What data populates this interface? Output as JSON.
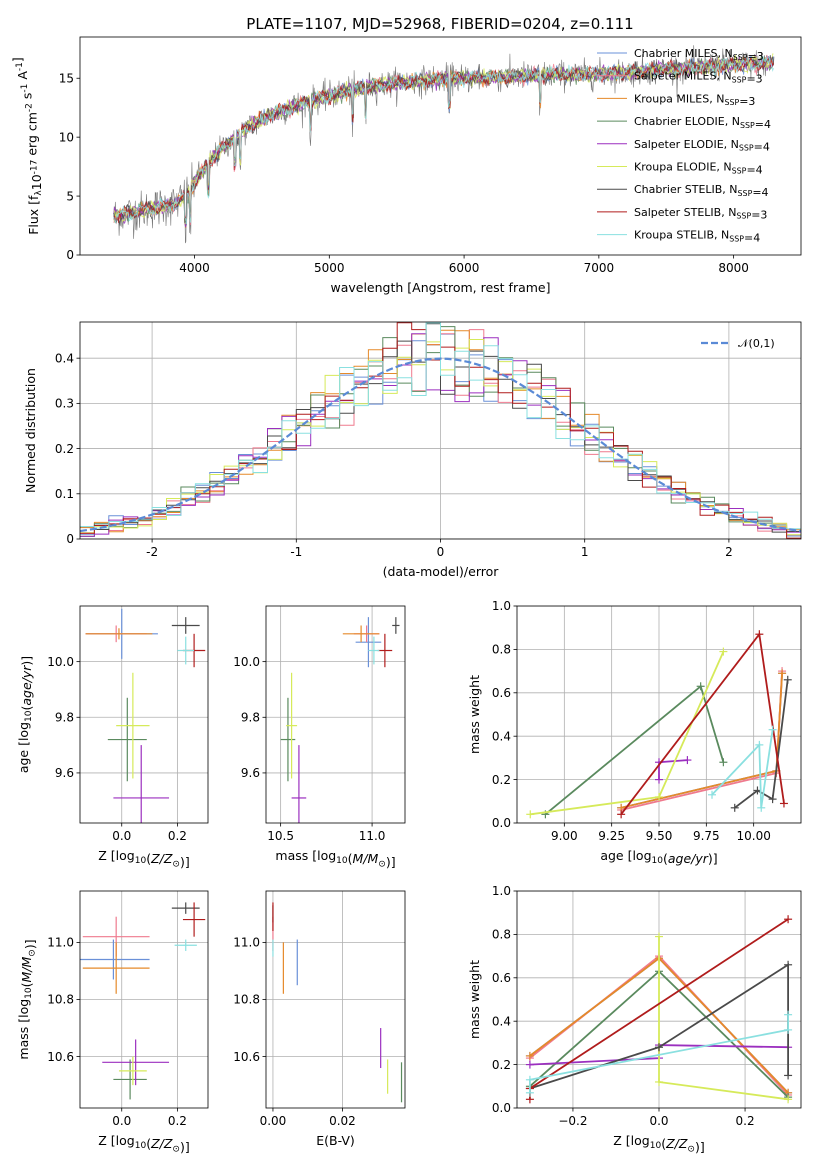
{
  "title": "PLATE=1107, MJD=52968, FIBERID=0204, z=0.111",
  "models": [
    {
      "label": "Chabrier MILES, N$_{SSP}$=3",
      "imf": "Chabrier",
      "lib": "MILES",
      "nssp": "3",
      "color": "#6a90d8"
    },
    {
      "label": "Salpeter MILES, N$_{SSP}$=3",
      "imf": "Salpeter",
      "lib": "MILES",
      "nssp": "3",
      "color": "#ef7a8e"
    },
    {
      "label": "Kroupa MILES, N$_{SSP}$=3",
      "imf": "Kroupa",
      "lib": "MILES",
      "nssp": "3",
      "color": "#e58a2a"
    },
    {
      "label": "Chabrier ELODIE, N$_{SSP}$=4",
      "imf": "Chabrier",
      "lib": "ELODIE",
      "nssp": "4",
      "color": "#5a8a5e"
    },
    {
      "label": "Salpeter ELODIE, N$_{SSP}$=4",
      "imf": "Salpeter",
      "lib": "ELODIE",
      "nssp": "4",
      "color": "#9b2fbf"
    },
    {
      "label": "Kroupa ELODIE, N$_{SSP}$=4",
      "imf": "Kroupa",
      "lib": "ELODIE",
      "nssp": "4",
      "color": "#d6ea5a"
    },
    {
      "label": "Chabrier STELIB, N$_{SSP}$=4",
      "imf": "Chabrier",
      "lib": "STELIB",
      "nssp": "4",
      "color": "#4a4a4a"
    },
    {
      "label": "Salpeter STELIB, N$_{SSP}$=3",
      "imf": "Salpeter",
      "lib": "STELIB",
      "nssp": "3",
      "color": "#b01c1c"
    },
    {
      "label": "Kroupa STELIB, N$_{SSP}$=4",
      "imf": "Kroupa",
      "lib": "STELIB",
      "nssp": "4",
      "color": "#8ae0e0"
    }
  ],
  "chart_data": [
    {
      "type": "line",
      "id": "spectrum",
      "xlabel": "wavelength [Angstrom, rest frame]",
      "ylabel": "Flux [f$_\\lambda$10$^{-17}$ erg cm$^{-2}$ s$^{-1}$ A$^{-1}$]",
      "xlim": [
        3150,
        8500
      ],
      "ylim": [
        0,
        18.5
      ],
      "xticks": [
        4000,
        5000,
        6000,
        7000,
        8000
      ],
      "yticks": [
        0,
        5,
        10,
        15
      ],
      "grid": false,
      "legend": "right",
      "continuum": {
        "x": [
          3400,
          3550,
          3700,
          3850,
          3950,
          4050,
          4200,
          4350,
          4500,
          4700,
          4900,
          5100,
          5300,
          5500,
          5700,
          5900,
          6100,
          6300,
          6500,
          6700,
          6900,
          7100,
          7300,
          7500,
          7700,
          7900,
          8100,
          8300
        ],
        "y": [
          3.3,
          3.6,
          4.0,
          4.3,
          5.2,
          7.0,
          9.0,
          10.5,
          11.5,
          12.5,
          13.2,
          13.8,
          14.3,
          14.6,
          14.8,
          15.0,
          15.0,
          15.1,
          15.2,
          15.3,
          15.3,
          15.4,
          15.6,
          15.8,
          15.9,
          16.1,
          16.2,
          16.3
        ]
      },
      "xrange_model": [
        3400,
        8300
      ]
    },
    {
      "type": "step",
      "id": "residual-hist",
      "xlabel": "(data-model)/error",
      "ylabel": "Normed distribution",
      "xlim": [
        -2.5,
        2.5
      ],
      "ylim": [
        0,
        0.48
      ],
      "xticks": [
        -2,
        -1,
        0,
        1,
        2
      ],
      "yticks": [
        0.0,
        0.1,
        0.2,
        0.3,
        0.4
      ],
      "grid": true,
      "legend": "top-right",
      "bin_width": 0.1,
      "reference": {
        "label": "$\\mathcal{N}(0,1)$",
        "mean": 0,
        "sigma": 1,
        "color": "#5a8ad6"
      }
    },
    {
      "type": "errorbar",
      "id": "age-vs-z",
      "xlabel": "Z [log$_{10}$($Z/Z_\\odot$)]",
      "ylabel": "age  [log$_{10}$($age/yr$)]",
      "xlim": [
        -0.15,
        0.31
      ],
      "ylim": [
        9.42,
        10.2
      ],
      "xticks": [
        0.0,
        0.2
      ],
      "xticklabels": [
        "0.0",
        "0.2"
      ],
      "yticks": [
        9.6,
        9.8,
        10.0
      ],
      "yticklabels": [
        "9.6",
        "9.8",
        "10.0"
      ],
      "grid": true,
      "points": [
        {
          "model": 0,
          "x": 0.0,
          "y": 10.1,
          "xerr": 0.13,
          "yerr": 0.09
        },
        {
          "model": 1,
          "x": -0.02,
          "y": 10.1,
          "xerr": 0.11,
          "yerr": 0.03
        },
        {
          "model": 2,
          "x": -0.01,
          "y": 10.1,
          "xerr": 0.12,
          "yerr": 0.02
        },
        {
          "model": 3,
          "x": 0.02,
          "y": 9.72,
          "xerr": 0.07,
          "yerr": 0.15
        },
        {
          "model": 4,
          "x": 0.07,
          "y": 9.51,
          "xerr": 0.1,
          "yerr": 0.19
        },
        {
          "model": 5,
          "x": 0.04,
          "y": 9.77,
          "xerr": 0.06,
          "yerr": 0.19
        },
        {
          "model": 6,
          "x": 0.23,
          "y": 10.13,
          "xerr": 0.05,
          "yerr": 0.03
        },
        {
          "model": 7,
          "x": 0.26,
          "y": 10.04,
          "xerr": 0.04,
          "yerr": 0.06
        },
        {
          "model": 8,
          "x": 0.23,
          "y": 10.04,
          "xerr": 0.03,
          "yerr": 0.05
        }
      ]
    },
    {
      "type": "errorbar",
      "id": "age-vs-mass",
      "xlabel": "mass [log$_{10}$($M/M_\\odot$)]",
      "ylabel": "",
      "xlim": [
        10.42,
        11.18
      ],
      "ylim": [
        9.42,
        10.2
      ],
      "xticks": [
        10.5,
        11.0
      ],
      "xticklabels": [
        "10.5",
        "11.0"
      ],
      "yticks": [
        9.6,
        9.8,
        10.0
      ],
      "yticklabels": [
        "9.6",
        "9.8",
        "10.0"
      ],
      "grid": true,
      "points": [
        {
          "model": 0,
          "x": 10.98,
          "y": 10.07,
          "xerr": 0.07,
          "yerr": 0.09
        },
        {
          "model": 1,
          "x": 10.97,
          "y": 10.1,
          "xerr": 0.07,
          "yerr": 0.03
        },
        {
          "model": 2,
          "x": 10.94,
          "y": 10.1,
          "xerr": 0.1,
          "yerr": 0.03
        },
        {
          "model": 3,
          "x": 10.54,
          "y": 9.72,
          "xerr": 0.04,
          "yerr": 0.15
        },
        {
          "model": 4,
          "x": 10.6,
          "y": 9.51,
          "xerr": 0.04,
          "yerr": 0.19
        },
        {
          "model": 5,
          "x": 10.56,
          "y": 9.77,
          "xerr": 0.03,
          "yerr": 0.19
        },
        {
          "model": 6,
          "x": 11.13,
          "y": 10.13,
          "xerr": 0.02,
          "yerr": 0.03
        },
        {
          "model": 7,
          "x": 11.07,
          "y": 10.04,
          "xerr": 0.04,
          "yerr": 0.06
        },
        {
          "model": 8,
          "x": 11.01,
          "y": 10.04,
          "xerr": 0.03,
          "yerr": 0.05
        }
      ]
    },
    {
      "type": "line",
      "id": "weight-vs-age",
      "xlabel": "age  [log$_{10}$($age/yr$)]",
      "ylabel": "mass weight",
      "xlim": [
        8.75,
        10.25
      ],
      "ylim": [
        0.0,
        1.0
      ],
      "xticks": [
        9.0,
        9.25,
        9.5,
        9.75,
        10.0
      ],
      "xticklabels": [
        "9.00",
        "9.25",
        "9.50",
        "9.75",
        "10.00"
      ],
      "yticks": [
        0.0,
        0.2,
        0.4,
        0.6,
        0.8,
        1.0
      ],
      "yticklabels": [
        "0.0",
        "0.2",
        "0.4",
        "0.6",
        "0.8",
        "1.0"
      ],
      "grid": true,
      "series": [
        {
          "model": 0,
          "points": [
            [
              9.3,
              0.07
            ],
            [
              10.12,
              0.24
            ],
            [
              10.15,
              0.69
            ]
          ]
        },
        {
          "model": 1,
          "points": [
            [
              9.3,
              0.06
            ],
            [
              10.12,
              0.23
            ],
            [
              10.15,
              0.7
            ]
          ]
        },
        {
          "model": 2,
          "points": [
            [
              9.3,
              0.07
            ],
            [
              10.12,
              0.24
            ],
            [
              10.15,
              0.69
            ]
          ]
        },
        {
          "model": 3,
          "points": [
            [
              8.9,
              0.04
            ],
            [
              9.72,
              0.63
            ],
            [
              9.84,
              0.28
            ]
          ]
        },
        {
          "model": 4,
          "points": [
            [
              9.5,
              0.2
            ],
            [
              9.5,
              0.28
            ],
            [
              9.65,
              0.29
            ]
          ]
        },
        {
          "model": 5,
          "points": [
            [
              8.82,
              0.04
            ],
            [
              9.5,
              0.12
            ],
            [
              9.84,
              0.79
            ]
          ]
        },
        {
          "model": 6,
          "points": [
            [
              9.9,
              0.07
            ],
            [
              10.02,
              0.15
            ],
            [
              10.1,
              0.11
            ],
            [
              10.18,
              0.66
            ]
          ]
        },
        {
          "model": 7,
          "points": [
            [
              9.3,
              0.04
            ],
            [
              10.03,
              0.87
            ],
            [
              10.16,
              0.09
            ]
          ]
        },
        {
          "model": 8,
          "points": [
            [
              9.78,
              0.13
            ],
            [
              10.03,
              0.36
            ],
            [
              10.04,
              0.07
            ],
            [
              10.1,
              0.43
            ]
          ]
        }
      ]
    },
    {
      "type": "errorbar",
      "id": "mass-vs-z",
      "xlabel": "Z [log$_{10}$($Z/Z_\\odot$)]",
      "ylabel": "mass [log$_{10}$($M/M_\\odot$)]",
      "xlim": [
        -0.15,
        0.31
      ],
      "ylim": [
        10.42,
        11.18
      ],
      "xticks": [
        0.0,
        0.2
      ],
      "xticklabels": [
        "0.0",
        "0.2"
      ],
      "yticks": [
        10.6,
        10.8,
        11.0
      ],
      "yticklabels": [
        "10.6",
        "10.8",
        "11.0"
      ],
      "grid": true,
      "points": [
        {
          "model": 0,
          "x": -0.03,
          "y": 10.94,
          "xerr": 0.13,
          "yerr": 0.07
        },
        {
          "model": 1,
          "x": -0.02,
          "y": 11.02,
          "xerr": 0.12,
          "yerr": 0.07
        },
        {
          "model": 2,
          "x": -0.02,
          "y": 10.91,
          "xerr": 0.12,
          "yerr": 0.09
        },
        {
          "model": 3,
          "x": 0.03,
          "y": 10.52,
          "xerr": 0.06,
          "yerr": 0.07
        },
        {
          "model": 4,
          "x": 0.05,
          "y": 10.58,
          "xerr": 0.12,
          "yerr": 0.08
        },
        {
          "model": 5,
          "x": 0.04,
          "y": 10.55,
          "xerr": 0.05,
          "yerr": 0.05
        },
        {
          "model": 6,
          "x": 0.23,
          "y": 11.12,
          "xerr": 0.05,
          "yerr": 0.02
        },
        {
          "model": 7,
          "x": 0.26,
          "y": 11.08,
          "xerr": 0.04,
          "yerr": 0.06
        },
        {
          "model": 8,
          "x": 0.23,
          "y": 10.99,
          "xerr": 0.04,
          "yerr": 0.02
        }
      ]
    },
    {
      "type": "errorbar",
      "id": "mass-vs-ebv",
      "xlabel": "E(B-V)",
      "ylabel": "",
      "xlim": [
        -0.002,
        0.038
      ],
      "ylim": [
        10.42,
        11.18
      ],
      "xticks": [
        0.0,
        0.02
      ],
      "xticklabels": [
        "0.00",
        "0.02"
      ],
      "yticks": [
        10.6,
        10.8,
        11.0
      ],
      "yticklabels": [
        "10.6",
        "10.8",
        "11.0"
      ],
      "grid": true,
      "points": [
        {
          "model": 0,
          "x": 0.007,
          "y": 10.93,
          "xerr": 0,
          "yerr": 0.08
        },
        {
          "model": 1,
          "x": 0.0,
          "y": 11.03,
          "xerr": 0,
          "yerr": 0.06
        },
        {
          "model": 2,
          "x": 0.003,
          "y": 10.91,
          "xerr": 0,
          "yerr": 0.09
        },
        {
          "model": 3,
          "x": 0.037,
          "y": 10.51,
          "xerr": 0,
          "yerr": 0.07
        },
        {
          "model": 4,
          "x": 0.031,
          "y": 10.63,
          "xerr": 0,
          "yerr": 0.07
        },
        {
          "model": 5,
          "x": 0.033,
          "y": 10.53,
          "xerr": 0,
          "yerr": 0.06
        },
        {
          "model": 6,
          "x": 0.0,
          "y": 11.1,
          "xerr": 0,
          "yerr": 0.03
        },
        {
          "model": 7,
          "x": 0.0,
          "y": 11.09,
          "xerr": 0,
          "yerr": 0.05
        },
        {
          "model": 8,
          "x": 0.0,
          "y": 10.98,
          "xerr": 0,
          "yerr": 0.03
        }
      ]
    },
    {
      "type": "line",
      "id": "weight-vs-z",
      "xlabel": "Z [log$_{10}$($Z/Z_\\odot$)]",
      "ylabel": "mass weight",
      "xlim": [
        -0.33,
        0.33
      ],
      "ylim": [
        0.0,
        1.0
      ],
      "xticks": [
        -0.2,
        0.0,
        0.2
      ],
      "xticklabels": [
        "−0.2",
        "0.0",
        "0.2"
      ],
      "yticks": [
        0.0,
        0.2,
        0.4,
        0.6,
        0.8,
        1.0
      ],
      "yticklabels": [
        "0.0",
        "0.2",
        "0.4",
        "0.6",
        "0.8",
        "1.0"
      ],
      "grid": true,
      "series": [
        {
          "model": 0,
          "points": [
            [
              -0.3,
              0.24
            ],
            [
              0.0,
              0.69
            ],
            [
              0.3,
              0.07
            ]
          ]
        },
        {
          "model": 1,
          "points": [
            [
              -0.3,
              0.23
            ],
            [
              0.0,
              0.7
            ],
            [
              0.3,
              0.06
            ]
          ]
        },
        {
          "model": 2,
          "points": [
            [
              -0.3,
              0.24
            ],
            [
              0.0,
              0.69
            ],
            [
              0.3,
              0.07
            ]
          ]
        },
        {
          "model": 3,
          "points": [
            [
              -0.3,
              0.1
            ],
            [
              0.0,
              0.63
            ],
            [
              0.3,
              0.05
            ]
          ]
        },
        {
          "model": 4,
          "points": [
            [
              -0.3,
              0.2
            ],
            [
              0.0,
              0.23
            ],
            [
              0.0,
              0.29
            ],
            [
              0.3,
              0.28
            ]
          ]
        },
        {
          "model": 5,
          "points": [
            [
              0.0,
              0.79
            ],
            [
              0.0,
              0.12
            ],
            [
              0.3,
              0.04
            ]
          ]
        },
        {
          "model": 6,
          "points": [
            [
              -0.3,
              0.09
            ],
            [
              0.0,
              0.28
            ],
            [
              0.3,
              0.66
            ],
            [
              0.3,
              0.15
            ]
          ]
        },
        {
          "model": 7,
          "points": [
            [
              -0.3,
              0.04
            ],
            [
              -0.3,
              0.09
            ],
            [
              0.3,
              0.87
            ]
          ]
        },
        {
          "model": 8,
          "points": [
            [
              -0.3,
              0.07
            ],
            [
              -0.3,
              0.13
            ],
            [
              0.3,
              0.36
            ],
            [
              0.3,
              0.43
            ]
          ]
        }
      ]
    }
  ]
}
